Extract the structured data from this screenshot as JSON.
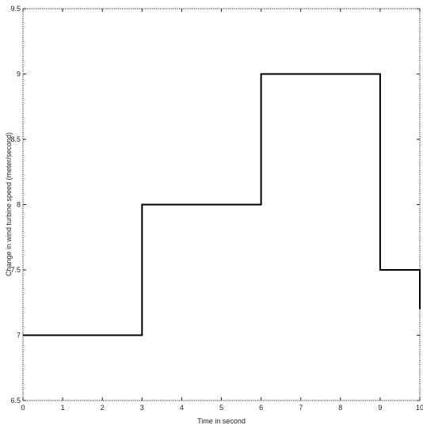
{
  "chart_data": {
    "type": "line",
    "title": "",
    "xlabel": "Time in second",
    "ylabel": "Change in wind turbine speed (meter/second)",
    "xlim": [
      0,
      10
    ],
    "ylim": [
      6.5,
      9.5
    ],
    "xticks": [
      0,
      1,
      2,
      3,
      4,
      5,
      6,
      7,
      8,
      9,
      10
    ],
    "yticks": [
      6.5,
      7,
      7.5,
      8,
      8.5,
      9,
      9.5
    ],
    "xtick_labels": [
      "0",
      "1",
      "2",
      "3",
      "4",
      "5",
      "6",
      "7",
      "8",
      "9",
      "10"
    ],
    "ytick_labels": [
      "6.5",
      "7",
      "7.5",
      "8",
      "8.5",
      "9",
      "9.5"
    ],
    "grid": false,
    "line_color": "#000000",
    "series": [
      {
        "step": "post",
        "x": [
          0,
          3,
          3,
          6,
          6,
          9,
          9,
          10,
          10
        ],
        "y": [
          7,
          7,
          8,
          8,
          9,
          9,
          7.5,
          7.5,
          7.2
        ]
      }
    ]
  }
}
